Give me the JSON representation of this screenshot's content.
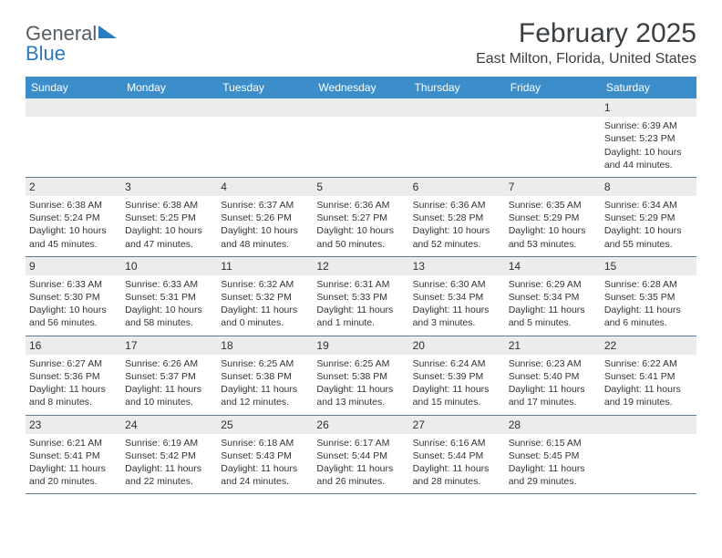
{
  "logo": {
    "text_gray": "General",
    "text_blue": "Blue"
  },
  "title": "February 2025",
  "location": "East Milton, Florida, United States",
  "colors": {
    "header_bg": "#3c8ecb",
    "header_text": "#ffffff",
    "daynum_bg": "#ececec",
    "border": "#5d7a94",
    "text": "#333333",
    "logo_gray": "#555d66",
    "logo_blue": "#2a7ac0",
    "background": "#ffffff"
  },
  "day_names": [
    "Sunday",
    "Monday",
    "Tuesday",
    "Wednesday",
    "Thursday",
    "Friday",
    "Saturday"
  ],
  "weeks": [
    [
      {
        "day": "",
        "sunrise": "",
        "sunset": "",
        "daylight": ""
      },
      {
        "day": "",
        "sunrise": "",
        "sunset": "",
        "daylight": ""
      },
      {
        "day": "",
        "sunrise": "",
        "sunset": "",
        "daylight": ""
      },
      {
        "day": "",
        "sunrise": "",
        "sunset": "",
        "daylight": ""
      },
      {
        "day": "",
        "sunrise": "",
        "sunset": "",
        "daylight": ""
      },
      {
        "day": "",
        "sunrise": "",
        "sunset": "",
        "daylight": ""
      },
      {
        "day": "1",
        "sunrise": "Sunrise: 6:39 AM",
        "sunset": "Sunset: 5:23 PM",
        "daylight": "Daylight: 10 hours and 44 minutes."
      }
    ],
    [
      {
        "day": "2",
        "sunrise": "Sunrise: 6:38 AM",
        "sunset": "Sunset: 5:24 PM",
        "daylight": "Daylight: 10 hours and 45 minutes."
      },
      {
        "day": "3",
        "sunrise": "Sunrise: 6:38 AM",
        "sunset": "Sunset: 5:25 PM",
        "daylight": "Daylight: 10 hours and 47 minutes."
      },
      {
        "day": "4",
        "sunrise": "Sunrise: 6:37 AM",
        "sunset": "Sunset: 5:26 PM",
        "daylight": "Daylight: 10 hours and 48 minutes."
      },
      {
        "day": "5",
        "sunrise": "Sunrise: 6:36 AM",
        "sunset": "Sunset: 5:27 PM",
        "daylight": "Daylight: 10 hours and 50 minutes."
      },
      {
        "day": "6",
        "sunrise": "Sunrise: 6:36 AM",
        "sunset": "Sunset: 5:28 PM",
        "daylight": "Daylight: 10 hours and 52 minutes."
      },
      {
        "day": "7",
        "sunrise": "Sunrise: 6:35 AM",
        "sunset": "Sunset: 5:29 PM",
        "daylight": "Daylight: 10 hours and 53 minutes."
      },
      {
        "day": "8",
        "sunrise": "Sunrise: 6:34 AM",
        "sunset": "Sunset: 5:29 PM",
        "daylight": "Daylight: 10 hours and 55 minutes."
      }
    ],
    [
      {
        "day": "9",
        "sunrise": "Sunrise: 6:33 AM",
        "sunset": "Sunset: 5:30 PM",
        "daylight": "Daylight: 10 hours and 56 minutes."
      },
      {
        "day": "10",
        "sunrise": "Sunrise: 6:33 AM",
        "sunset": "Sunset: 5:31 PM",
        "daylight": "Daylight: 10 hours and 58 minutes."
      },
      {
        "day": "11",
        "sunrise": "Sunrise: 6:32 AM",
        "sunset": "Sunset: 5:32 PM",
        "daylight": "Daylight: 11 hours and 0 minutes."
      },
      {
        "day": "12",
        "sunrise": "Sunrise: 6:31 AM",
        "sunset": "Sunset: 5:33 PM",
        "daylight": "Daylight: 11 hours and 1 minute."
      },
      {
        "day": "13",
        "sunrise": "Sunrise: 6:30 AM",
        "sunset": "Sunset: 5:34 PM",
        "daylight": "Daylight: 11 hours and 3 minutes."
      },
      {
        "day": "14",
        "sunrise": "Sunrise: 6:29 AM",
        "sunset": "Sunset: 5:34 PM",
        "daylight": "Daylight: 11 hours and 5 minutes."
      },
      {
        "day": "15",
        "sunrise": "Sunrise: 6:28 AM",
        "sunset": "Sunset: 5:35 PM",
        "daylight": "Daylight: 11 hours and 6 minutes."
      }
    ],
    [
      {
        "day": "16",
        "sunrise": "Sunrise: 6:27 AM",
        "sunset": "Sunset: 5:36 PM",
        "daylight": "Daylight: 11 hours and 8 minutes."
      },
      {
        "day": "17",
        "sunrise": "Sunrise: 6:26 AM",
        "sunset": "Sunset: 5:37 PM",
        "daylight": "Daylight: 11 hours and 10 minutes."
      },
      {
        "day": "18",
        "sunrise": "Sunrise: 6:25 AM",
        "sunset": "Sunset: 5:38 PM",
        "daylight": "Daylight: 11 hours and 12 minutes."
      },
      {
        "day": "19",
        "sunrise": "Sunrise: 6:25 AM",
        "sunset": "Sunset: 5:38 PM",
        "daylight": "Daylight: 11 hours and 13 minutes."
      },
      {
        "day": "20",
        "sunrise": "Sunrise: 6:24 AM",
        "sunset": "Sunset: 5:39 PM",
        "daylight": "Daylight: 11 hours and 15 minutes."
      },
      {
        "day": "21",
        "sunrise": "Sunrise: 6:23 AM",
        "sunset": "Sunset: 5:40 PM",
        "daylight": "Daylight: 11 hours and 17 minutes."
      },
      {
        "day": "22",
        "sunrise": "Sunrise: 6:22 AM",
        "sunset": "Sunset: 5:41 PM",
        "daylight": "Daylight: 11 hours and 19 minutes."
      }
    ],
    [
      {
        "day": "23",
        "sunrise": "Sunrise: 6:21 AM",
        "sunset": "Sunset: 5:41 PM",
        "daylight": "Daylight: 11 hours and 20 minutes."
      },
      {
        "day": "24",
        "sunrise": "Sunrise: 6:19 AM",
        "sunset": "Sunset: 5:42 PM",
        "daylight": "Daylight: 11 hours and 22 minutes."
      },
      {
        "day": "25",
        "sunrise": "Sunrise: 6:18 AM",
        "sunset": "Sunset: 5:43 PM",
        "daylight": "Daylight: 11 hours and 24 minutes."
      },
      {
        "day": "26",
        "sunrise": "Sunrise: 6:17 AM",
        "sunset": "Sunset: 5:44 PM",
        "daylight": "Daylight: 11 hours and 26 minutes."
      },
      {
        "day": "27",
        "sunrise": "Sunrise: 6:16 AM",
        "sunset": "Sunset: 5:44 PM",
        "daylight": "Daylight: 11 hours and 28 minutes."
      },
      {
        "day": "28",
        "sunrise": "Sunrise: 6:15 AM",
        "sunset": "Sunset: 5:45 PM",
        "daylight": "Daylight: 11 hours and 29 minutes."
      },
      {
        "day": "",
        "sunrise": "",
        "sunset": "",
        "daylight": ""
      }
    ]
  ]
}
